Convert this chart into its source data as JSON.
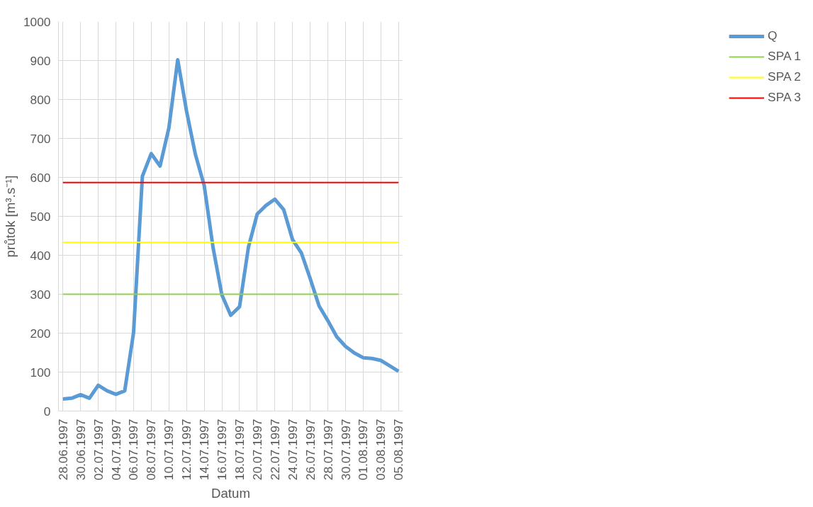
{
  "chart_data": {
    "type": "line",
    "xlabel": "Datum",
    "ylabel": "průtok [m³.s⁻¹]",
    "x": [
      "1997-06-28",
      "1997-06-29",
      "1997-06-30",
      "1997-07-01",
      "1997-07-02",
      "1997-07-03",
      "1997-07-04",
      "1997-07-05",
      "1997-07-06",
      "1997-07-07",
      "1997-07-08",
      "1997-07-09",
      "1997-07-10",
      "1997-07-11",
      "1997-07-12",
      "1997-07-13",
      "1997-07-14",
      "1997-07-15",
      "1997-07-16",
      "1997-07-17",
      "1997-07-18",
      "1997-07-19",
      "1997-07-20",
      "1997-07-21",
      "1997-07-22",
      "1997-07-23",
      "1997-07-24",
      "1997-07-25",
      "1997-07-26",
      "1997-07-27",
      "1997-07-28",
      "1997-07-29",
      "1997-07-30",
      "1997-07-31",
      "1997-08-01",
      "1997-08-02",
      "1997-08-03",
      "1997-08-04",
      "1997-08-05"
    ],
    "series": [
      {
        "name": "Q",
        "color": "#5b9bd5",
        "values": [
          31,
          33,
          42,
          33,
          66,
          52,
          43,
          52,
          201,
          603,
          661,
          629,
          727,
          902,
          770,
          659,
          579,
          420,
          298,
          246,
          268,
          420,
          506,
          528,
          544,
          517,
          440,
          406,
          340,
          270,
          232,
          191,
          166,
          149,
          137,
          135,
          130,
          116,
          102
        ]
      }
    ],
    "ref_lines": [
      {
        "axis": "y",
        "value": 300,
        "label": "SPA 1",
        "color": "#92d050",
        "line_style": "solid"
      },
      {
        "axis": "y",
        "value": 433,
        "label": "SPA 2",
        "color": "#ffff00",
        "line_style": "solid"
      },
      {
        "axis": "y",
        "value": 587,
        "label": "SPA 3",
        "color": "#ff0000",
        "line_style": "solid"
      }
    ],
    "xlim": [
      "1997-06-27T12:00",
      "1997-08-05T12:00"
    ],
    "xticks": [
      {
        "value": "1997-06-28",
        "label": "28.06.1997"
      },
      {
        "value": "1997-06-30",
        "label": "30.06.1997"
      },
      {
        "value": "1997-07-02",
        "label": "02.07.1997"
      },
      {
        "value": "1997-07-04",
        "label": "04.07.1997"
      },
      {
        "value": "1997-07-06",
        "label": "06.07.1997"
      },
      {
        "value": "1997-07-08",
        "label": "08.07.1997"
      },
      {
        "value": "1997-07-10",
        "label": "10.07.1997"
      },
      {
        "value": "1997-07-12",
        "label": "12.07.1997"
      },
      {
        "value": "1997-07-14",
        "label": "14.07.1997"
      },
      {
        "value": "1997-07-16",
        "label": "16.07.1997"
      },
      {
        "value": "1997-07-18",
        "label": "18.07.1997"
      },
      {
        "value": "1997-07-20",
        "label": "20.07.1997"
      },
      {
        "value": "1997-07-22",
        "label": "22.07.1997"
      },
      {
        "value": "1997-07-24",
        "label": "24.07.1997"
      },
      {
        "value": "1997-07-26",
        "label": "26.07.1997"
      },
      {
        "value": "1997-07-28",
        "label": "28.07.1997"
      },
      {
        "value": "1997-07-30",
        "label": "30.07.1997"
      },
      {
        "value": "1997-08-01",
        "label": "01.08.1997"
      },
      {
        "value": "1997-08-03",
        "label": "03.08.1997"
      },
      {
        "value": "1997-08-05",
        "label": "05.08.1997"
      }
    ],
    "ylim": [
      0,
      1000
    ],
    "yticks": [
      0,
      100,
      200,
      300,
      400,
      500,
      600,
      700,
      800,
      900,
      1000
    ],
    "grid": true,
    "legend": "right",
    "marker": "none",
    "line_style": "solid"
  }
}
